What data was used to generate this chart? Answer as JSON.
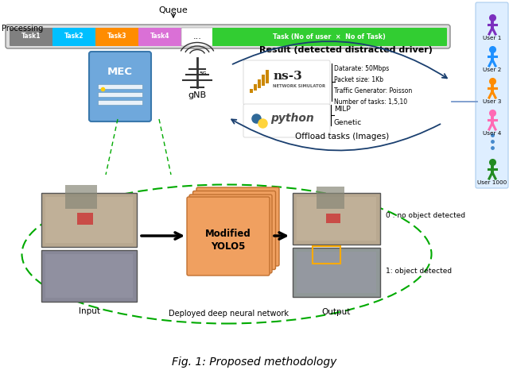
{
  "title": "Fig. 1: Proposed methodology",
  "queue_label": "Queue",
  "processing_label": "Processing",
  "task_labels": [
    "Task1",
    "Task2",
    "Task3",
    "Task4",
    "...",
    "Task (No of user  ×  No of Task)"
  ],
  "task_colors": [
    "#808080",
    "#00bfff",
    "#ff8c00",
    "#da70d6",
    "#ffffff",
    "#32cd32"
  ],
  "mec_label": "MEC",
  "gnb_label": "gNB",
  "result_label": "Result (detected distracted driver)",
  "ns3_info": "Datarate: 50Mbps\nPacket size: 1Kb\nTraffic Generator: Poisson\nNumber of tasks: 1,5,10",
  "algo_text": "MILP\nGenetic",
  "offload_label": "Offload tasks (Images)",
  "input_label": "Input",
  "dnn_label": "Deployed deep neural network",
  "output_label": "Output",
  "yolo_label": "Modified\nYOLO5",
  "output0_label": "0 : no object detected",
  "output1_label": "1: object detected",
  "user_labels": [
    "User 1",
    "User 2",
    "User 3",
    "User 4",
    "User 1000"
  ],
  "user_colors": [
    "#7b2fbe",
    "#1e90ff",
    "#ff8c00",
    "#ff69b4",
    "#228b22"
  ],
  "bg_color": "#ffffff"
}
